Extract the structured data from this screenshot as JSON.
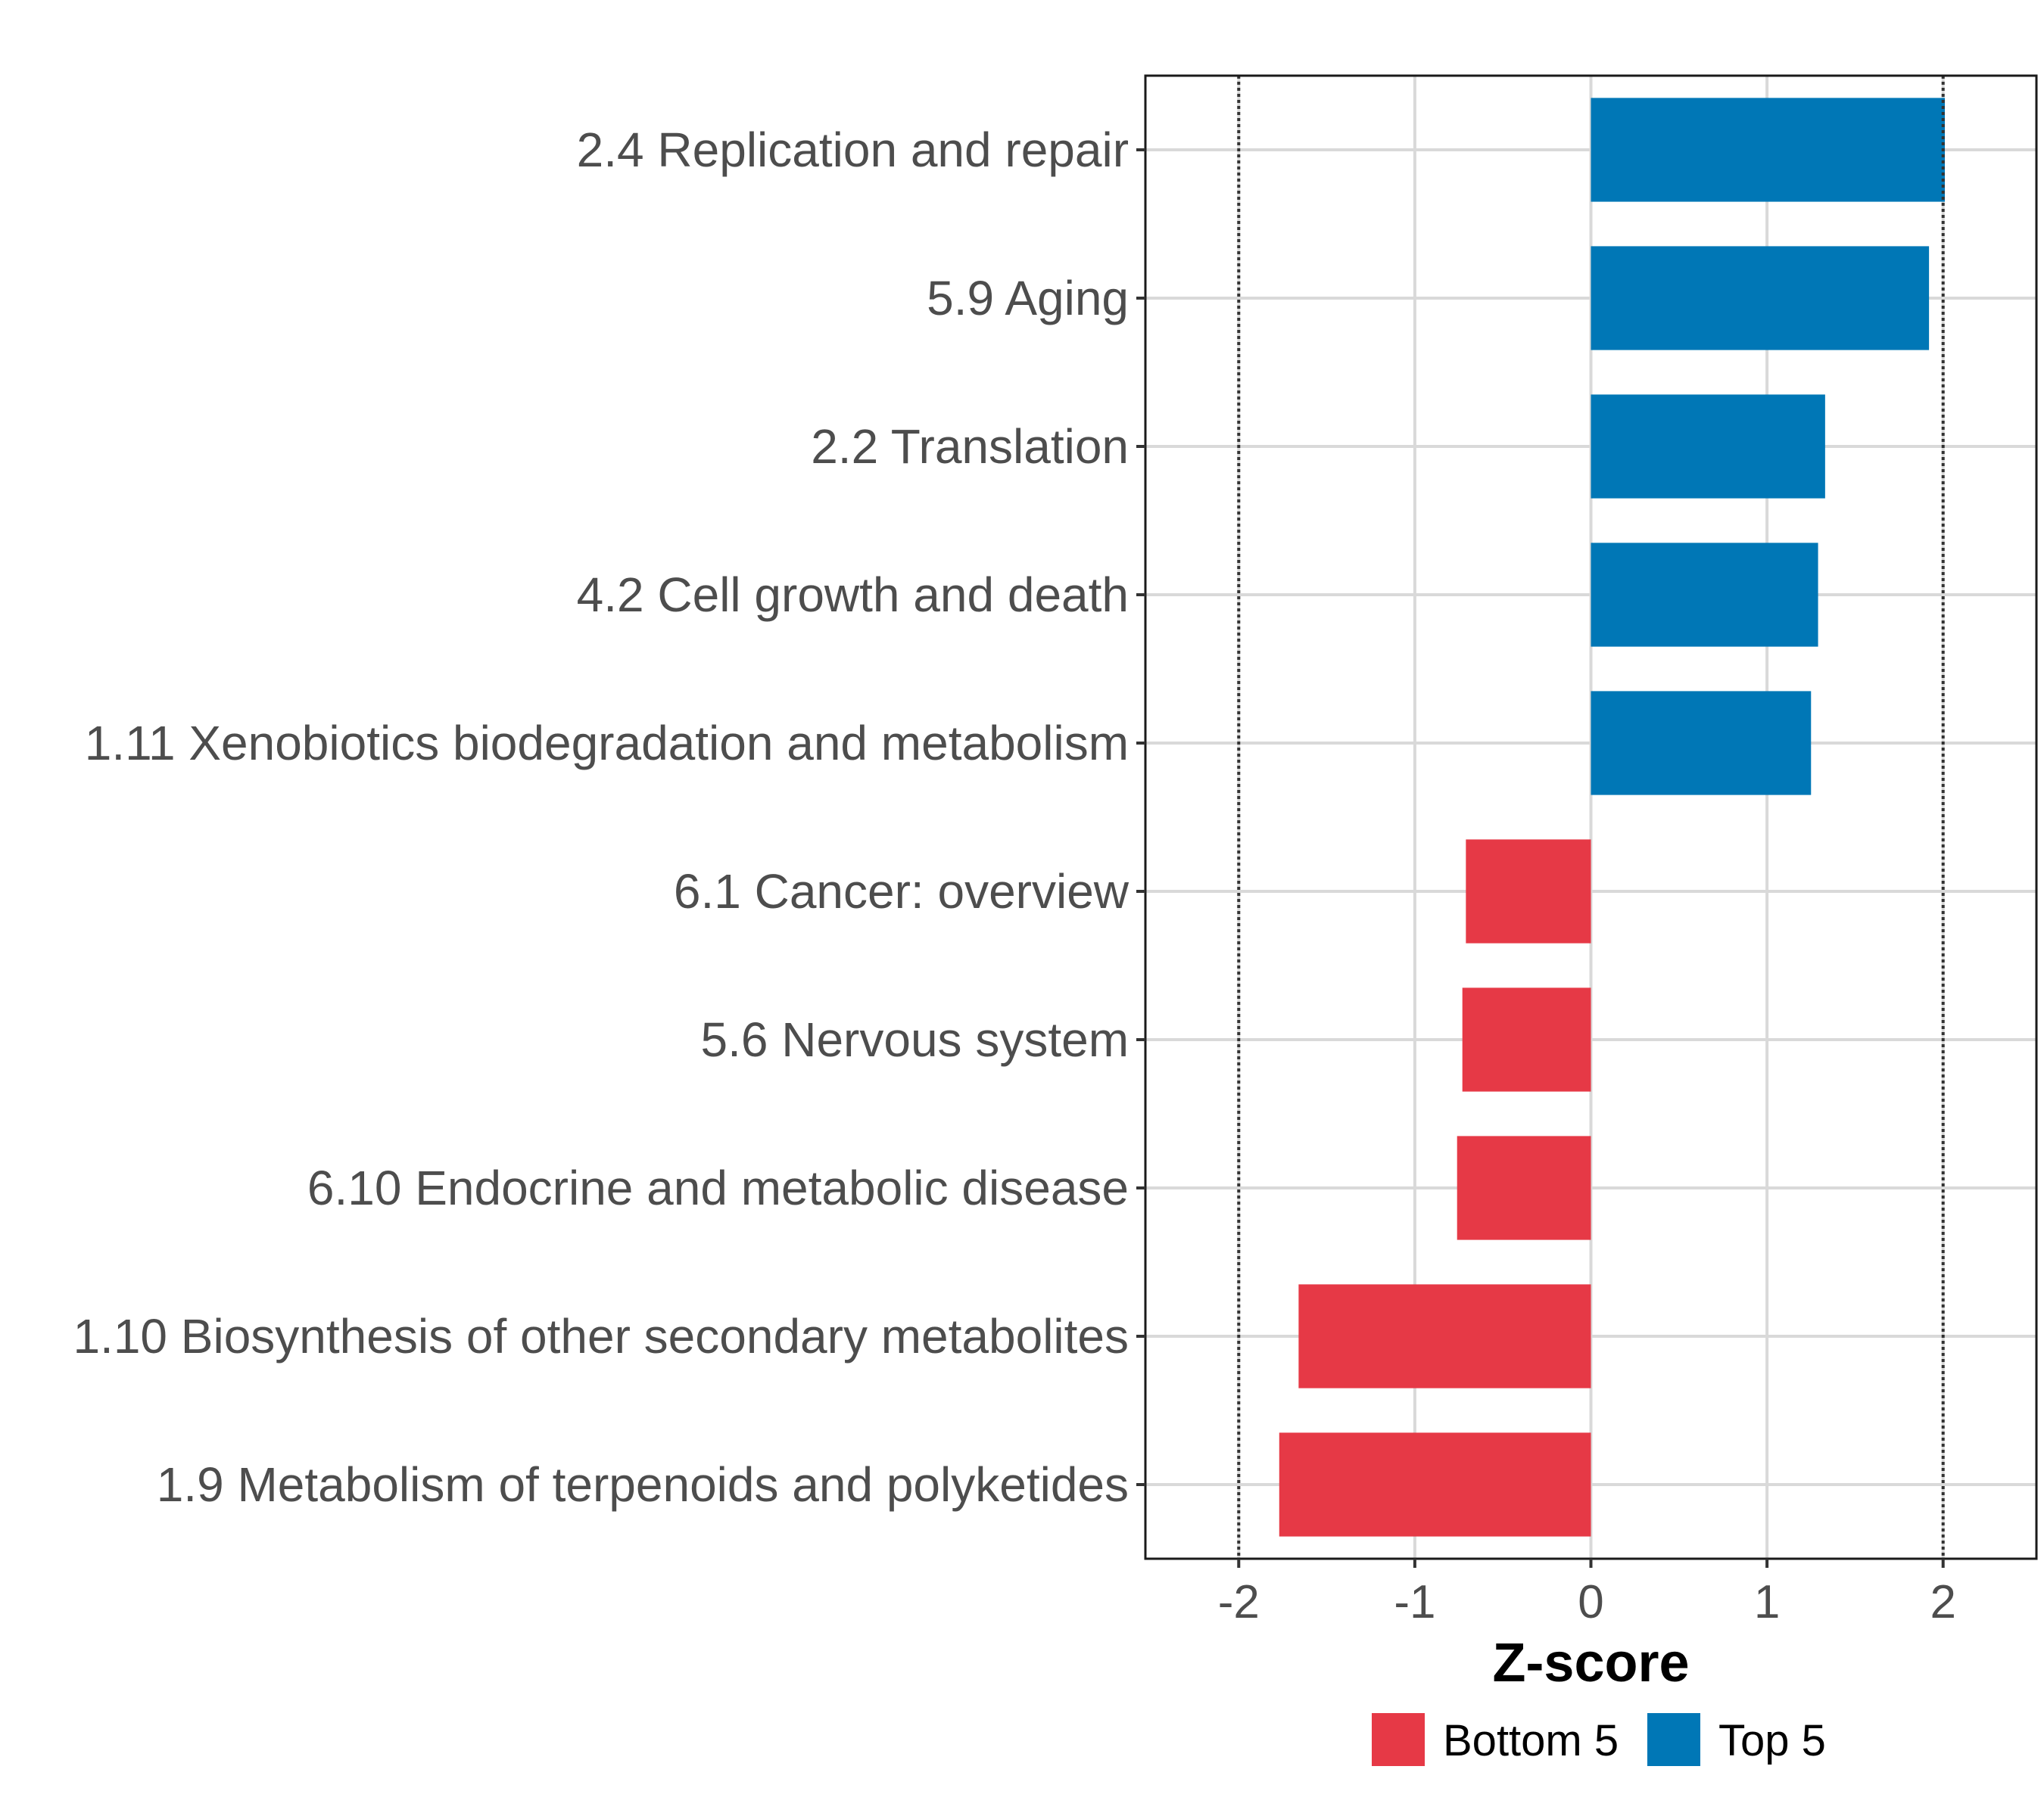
{
  "chart_data": {
    "type": "bar",
    "orientation": "horizontal",
    "categories": [
      "2.4 Replication and repair",
      "5.9 Aging",
      "2.2 Translation",
      "4.2 Cell growth and death",
      "1.11 Xenobiotics biodegradation and metabolism",
      "6.1 Cancer: overview",
      "5.6 Nervous system",
      "6.10 Endocrine and metabolic disease",
      "1.10 Biosynthesis of other secondary metabolites",
      "1.9 Metabolism of terpenoids and polyketides"
    ],
    "values": [
      2.01,
      1.92,
      1.33,
      1.29,
      1.25,
      -0.71,
      -0.73,
      -0.76,
      -1.66,
      -1.77
    ],
    "groups": [
      "Top 5",
      "Top 5",
      "Top 5",
      "Top 5",
      "Top 5",
      "Bottom 5",
      "Bottom 5",
      "Bottom 5",
      "Bottom 5",
      "Bottom 5"
    ],
    "xlabel": "Z-score",
    "ylabel": "",
    "title": "",
    "xlim": [
      -2.53,
      2.53
    ],
    "xticks": [
      -2,
      -1,
      0,
      1,
      2
    ],
    "xtick_labels": [
      "-2",
      "-1",
      "0",
      "1",
      "2"
    ],
    "reference_lines": [
      -2,
      2
    ],
    "grid": true,
    "legend": {
      "position": "bottom",
      "entries": [
        {
          "label": "Bottom 5",
          "color": "#e63946"
        },
        {
          "label": "Top 5",
          "color": "#0077b6"
        }
      ]
    },
    "colors": {
      "Bottom 5": "#e63946",
      "Top 5": "#0077b6"
    }
  }
}
